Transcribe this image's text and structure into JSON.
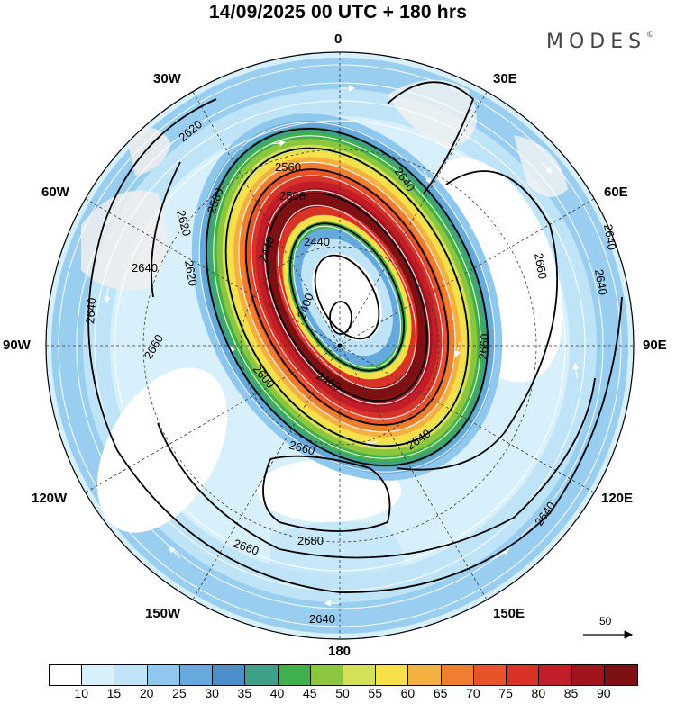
{
  "title": "14/09/2025  00 UTC  + 180 hrs",
  "brand": {
    "name": "MODES",
    "mark": "©"
  },
  "map": {
    "projection": "polar stereographic",
    "contour_labels": [
      "2620",
      "2620",
      "2560",
      "2580",
      "2500",
      "2440",
      "2440",
      "2640",
      "2400",
      "2660",
      "2640",
      "2620",
      "2640",
      "2640",
      "2660",
      "2660",
      "2600",
      "2460",
      "2660",
      "2640",
      "2680",
      "2660",
      "2640",
      "2640",
      "2640"
    ],
    "longitude_labels": {
      "lon_0": "0",
      "lon_30e": "30E",
      "lon_60e": "60E",
      "lon_90e": "90E",
      "lon_120e": "120E",
      "lon_150e": "150E",
      "lon_180": "180",
      "lon_150w": "150W",
      "lon_120w": "120W",
      "lon_90w": "90W",
      "lon_60w": "60W",
      "lon_30w": "30W"
    },
    "reference_vector": "50"
  },
  "colorbar": {
    "colors": [
      "#ffffff",
      "#d8f0fb",
      "#bfe4f7",
      "#8ec8ee",
      "#66a9dd",
      "#4a8fc9",
      "#3fa08a",
      "#3fb04a",
      "#8cc63f",
      "#d4e157",
      "#f7e04a",
      "#f5b042",
      "#ef7f2e",
      "#e8542a",
      "#d93327",
      "#c21e2a",
      "#a0151c",
      "#7e0f12"
    ],
    "labels": [
      "10",
      "15",
      "20",
      "25",
      "30",
      "35",
      "40",
      "45",
      "50",
      "55",
      "60",
      "65",
      "70",
      "75",
      "80",
      "85",
      "90"
    ]
  }
}
